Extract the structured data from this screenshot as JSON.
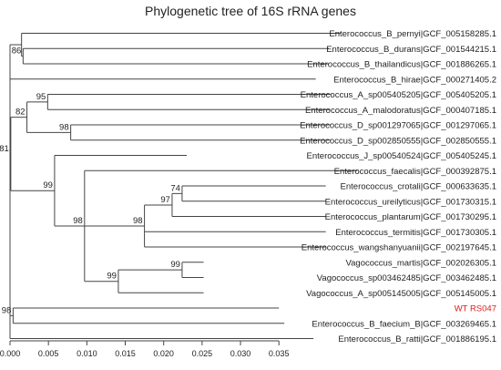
{
  "title": "Phylogenetic tree of 16S rRNA genes",
  "highlight_color": "#e0201b",
  "tree": {
    "children": [
      {
        "children": [
          {
            "name": "Enterococcus_B_pernyi|GCF_005158285.1",
            "len": 0.0415
          },
          {
            "children": [
              {
                "name": "Enterococcus_B_durans|GCF_001544215.1",
                "len": 0.0398
              },
              {
                "name": "Enterococcus_B_thailandicus|GCF_001886265.1",
                "len": 0.0398
              }
            ],
            "support": "86",
            "len": 0.0002
          }
        ],
        "len": 0.0015
      },
      {
        "name": "Enterococcus_B_hirae|GCF_000271405.2",
        "len": 0.0398
      },
      {
        "children": [
          {
            "children": [
              {
                "children": [
                  {
                    "name": "Enterococcus_A_sp005405205|GCF_005405205.1",
                    "len": 0.0368
                  },
                  {
                    "name": "Enterococcus_A_malodoratus|GCF_000407185.1",
                    "len": 0.0368
                  }
                ],
                "support": "95",
                "len": 0.0027
              },
              {
                "children": [
                  {
                    "name": "Enterococcus_D_sp001297065|GCF_001297065.1",
                    "len": 0.0338
                  },
                  {
                    "name": "Enterococcus_D_sp002850555|GCF_002850555.1",
                    "len": 0.0338
                  }
                ],
                "support": "98",
                "len": 0.0057
              }
            ],
            "support": "82",
            "len": 0.0021
          },
          {
            "children": [
              {
                "name": "Enterococcus_J_sp00540524|GCF_005405245.1",
                "len": 0.0172
              },
              {
                "children": [
                  {
                    "name": "Enterococcus_faecalis|GCF_000392875.1",
                    "len": 0.0355
                  },
                  {
                    "children": [
                      {
                        "children": [
                          {
                            "children": [
                              {
                                "name": "Enterococcus_crotali|GCF_000633635.1",
                                "len": 0.0187
                              },
                              {
                                "name": "Enterococcus_ureilyticus|GCF_001730315.1",
                                "len": 0.0187
                              }
                            ],
                            "support": "74",
                            "len": 0.0013
                          },
                          {
                            "name": "Enterococcus_plantarum|GCF_001730295.1",
                            "len": 0.02
                          }
                        ],
                        "support": "97",
                        "len": 0.0036
                      },
                      {
                        "name": "Enterococcus_termitis|GCF_001730305.1",
                        "len": 0.0236
                      },
                      {
                        "name": "Enterococcus_wangshanyuanii|GCF_002197645.1",
                        "len": 0.0236
                      }
                    ],
                    "support": "98",
                    "len": 0.0078
                  },
                  {
                    "children": [
                      {
                        "children": [
                          {
                            "name": "Vagococcus_martis|GCF_002026305.1",
                            "len": 0.0028
                          },
                          {
                            "name": "Vagococcus_sp003462485|GCF_003462485.1",
                            "len": 0.0028
                          }
                        ],
                        "support": "99",
                        "len": 0.0083
                      },
                      {
                        "name": "Vagococcus_A_sp005145005|GCF_005145005.1",
                        "len": 0.0111
                      }
                    ],
                    "support": "99",
                    "len": 0.0044
                  }
                ],
                "support": "98",
                "len": 0.0039
              }
            ],
            "support": "99",
            "len": 0.0057
          }
        ],
        "support": "81",
        "len": 0.0001
      },
      {
        "children": [
          {
            "name": "WT RS047",
            "len": 0.0346,
            "highlight": true
          },
          {
            "name": "Enterococcus_B_faecium_B|GCF_003269465.1",
            "len": 0.0353
          }
        ],
        "support": "98",
        "len": 0.0004
      },
      {
        "name": "Enterococcus_B_ratti|GCF_001886195.1",
        "len": 0.0395
      }
    ]
  },
  "axis": {
    "min": 0,
    "max": 0.035,
    "ticks": [
      "0.000",
      "0.005",
      "0.010",
      "0.015",
      "0.020",
      "0.025",
      "0.030",
      "0.035"
    ]
  }
}
